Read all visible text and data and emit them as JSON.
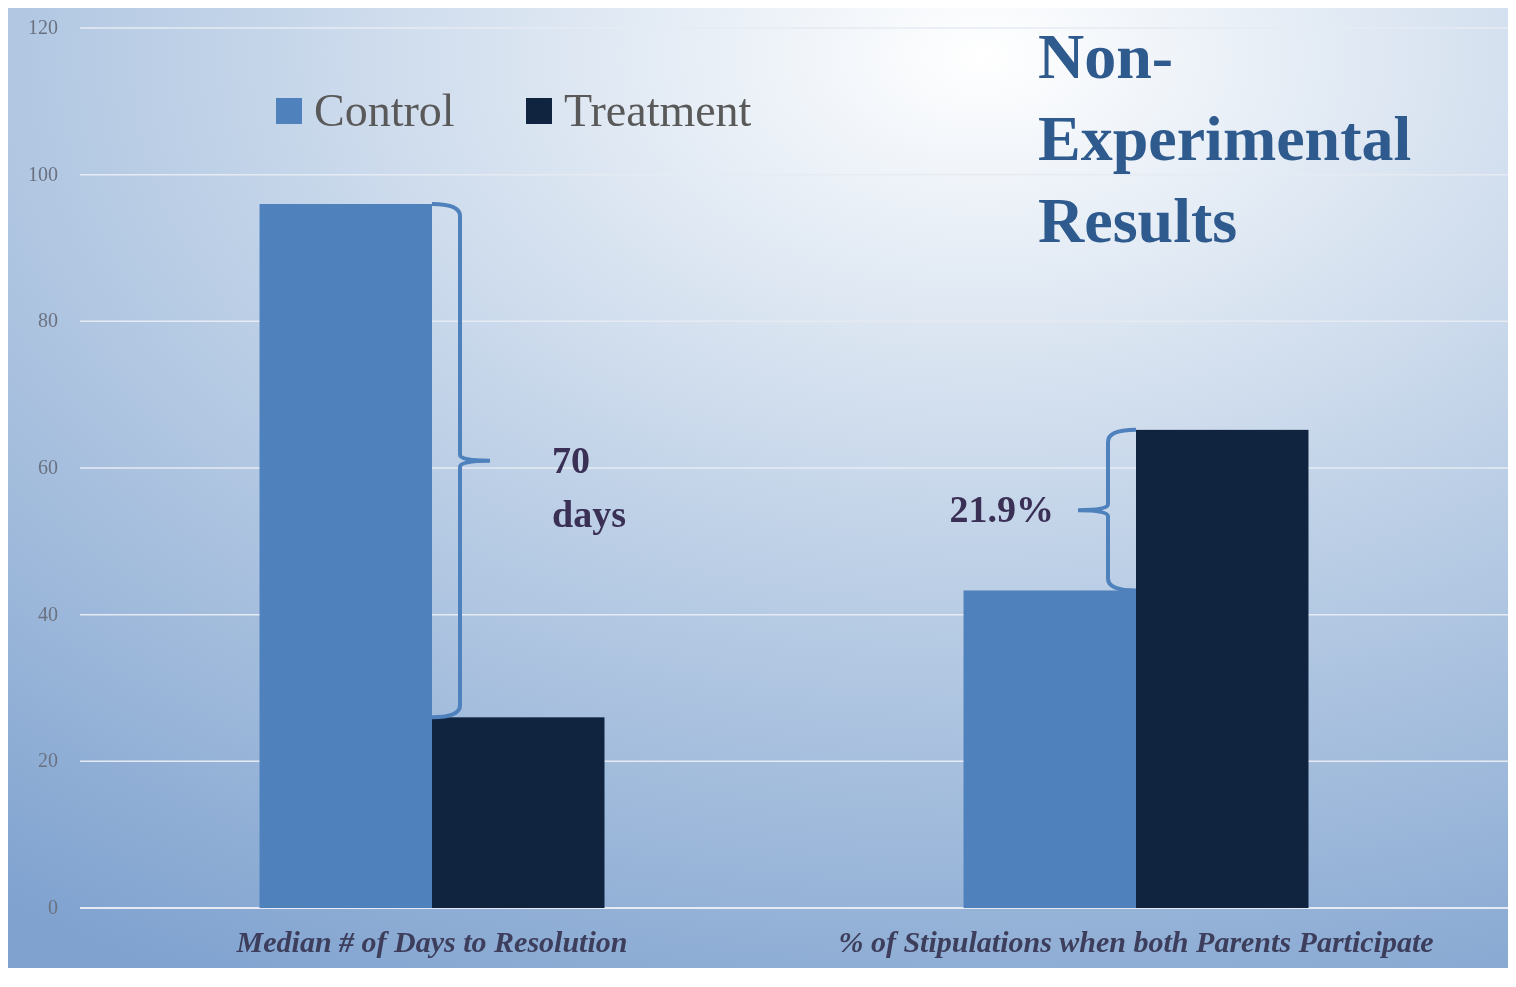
{
  "chart_data": {
    "type": "bar",
    "title": "Non-Experimental Results",
    "categories": [
      "Median # of Days to Resolution",
      "% of Stipulations when both Parents Participate"
    ],
    "series": [
      {
        "name": "Control",
        "color": "#4f81bd",
        "values": [
          96,
          43.3
        ]
      },
      {
        "name": "Treatment",
        "color": "#10233f",
        "values": [
          26,
          65.2
        ]
      }
    ],
    "ylim": [
      0,
      120
    ],
    "yticks": [
      0,
      20,
      40,
      60,
      80,
      100,
      120
    ],
    "grid": "y",
    "legend": "top left",
    "annotations": [
      "70 days",
      "21.9%"
    ]
  }
}
